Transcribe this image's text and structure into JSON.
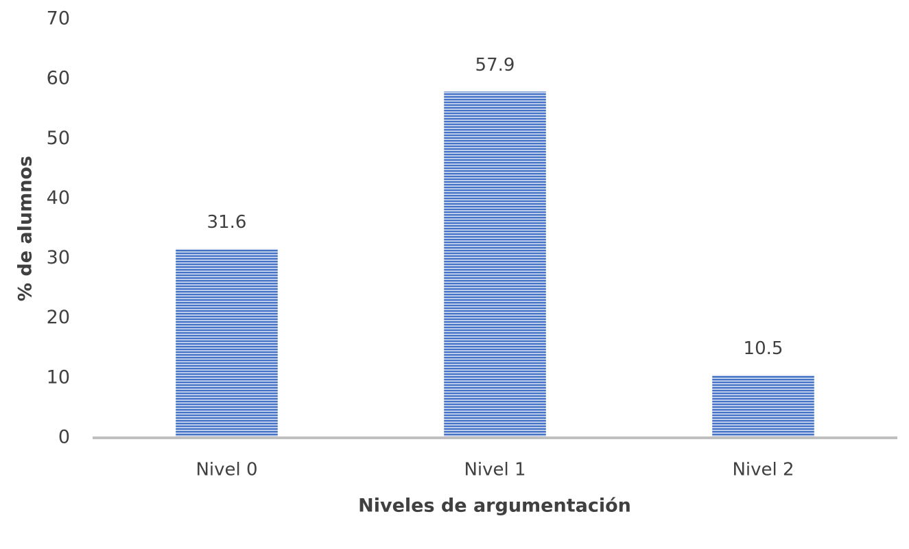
{
  "chart_data": {
    "type": "bar",
    "categories": [
      "Nivel 0",
      "Nivel 1",
      "Nivel 2"
    ],
    "values": [
      31.6,
      57.9,
      10.5
    ],
    "color": "#4472c4",
    "ylim": [
      0,
      70
    ],
    "yticks": [
      0,
      10,
      20,
      30,
      40,
      50,
      60,
      70
    ],
    "grid": false,
    "xlabel": "Niveles de argumentación",
    "ylabel": "% de alumnos"
  }
}
